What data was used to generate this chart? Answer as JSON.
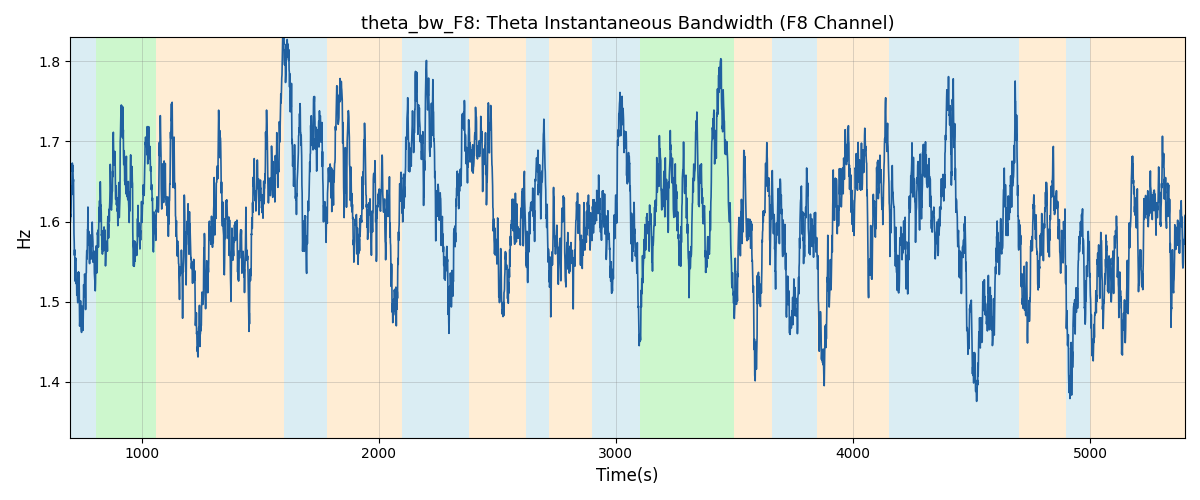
{
  "title": "theta_bw_F8: Theta Instantaneous Bandwidth (F8 Channel)",
  "xlabel": "Time(s)",
  "ylabel": "Hz",
  "xlim": [
    700,
    5400
  ],
  "ylim": [
    1.33,
    1.83
  ],
  "yticks": [
    1.4,
    1.5,
    1.6,
    1.7,
    1.8
  ],
  "xticks": [
    1000,
    2000,
    3000,
    4000,
    5000
  ],
  "line_color": "#2060a0",
  "line_width": 1.2,
  "bg_regions": [
    {
      "start": 700,
      "end": 810,
      "color": "#add8e6",
      "alpha": 0.45
    },
    {
      "start": 810,
      "end": 1060,
      "color": "#90ee90",
      "alpha": 0.45
    },
    {
      "start": 1060,
      "end": 1600,
      "color": "#ffd9a0",
      "alpha": 0.45
    },
    {
      "start": 1600,
      "end": 1780,
      "color": "#add8e6",
      "alpha": 0.45
    },
    {
      "start": 1780,
      "end": 2100,
      "color": "#ffd9a0",
      "alpha": 0.45
    },
    {
      "start": 2100,
      "end": 2380,
      "color": "#add8e6",
      "alpha": 0.45
    },
    {
      "start": 2380,
      "end": 2620,
      "color": "#ffd9a0",
      "alpha": 0.45
    },
    {
      "start": 2620,
      "end": 2720,
      "color": "#add8e6",
      "alpha": 0.45
    },
    {
      "start": 2720,
      "end": 2900,
      "color": "#ffd9a0",
      "alpha": 0.45
    },
    {
      "start": 2900,
      "end": 3100,
      "color": "#add8e6",
      "alpha": 0.45
    },
    {
      "start": 3100,
      "end": 3500,
      "color": "#90ee90",
      "alpha": 0.45
    },
    {
      "start": 3500,
      "end": 3660,
      "color": "#ffd9a0",
      "alpha": 0.45
    },
    {
      "start": 3660,
      "end": 3850,
      "color": "#add8e6",
      "alpha": 0.45
    },
    {
      "start": 3850,
      "end": 4150,
      "color": "#ffd9a0",
      "alpha": 0.45
    },
    {
      "start": 4150,
      "end": 4700,
      "color": "#add8e6",
      "alpha": 0.45
    },
    {
      "start": 4700,
      "end": 4900,
      "color": "#ffd9a0",
      "alpha": 0.45
    },
    {
      "start": 4900,
      "end": 5000,
      "color": "#add8e6",
      "alpha": 0.45
    },
    {
      "start": 5000,
      "end": 5400,
      "color": "#ffd9a0",
      "alpha": 0.45
    }
  ],
  "seed": 42,
  "n_points": 4700,
  "t_start": 700,
  "t_end": 5400,
  "mean": 1.6,
  "std": 0.07,
  "figwidth": 12.0,
  "figheight": 5.0,
  "dpi": 100
}
